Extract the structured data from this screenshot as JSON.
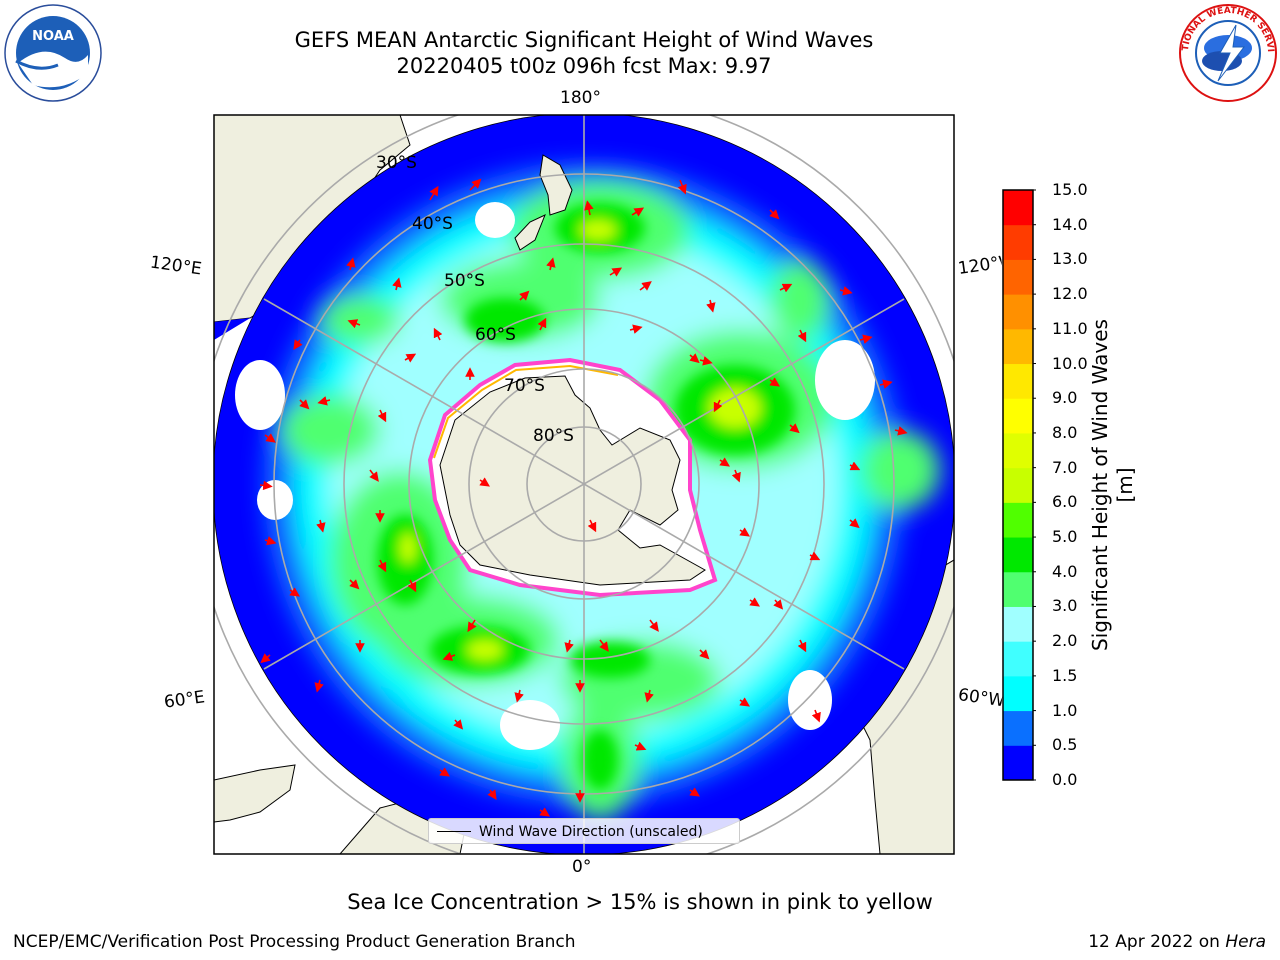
{
  "title": {
    "line1": "GEFS MEAN Antarctic Significant Height of Wind Waves",
    "line2": "20220405 t00z 096h fcst   Max: 9.97"
  },
  "logos": {
    "left": "NOAA",
    "right": "NATIONAL WEATHER SERVICE"
  },
  "map": {
    "projection": "south-polar-stereographic",
    "lon_labels": {
      "top": "180°",
      "left_upper": "120°E",
      "right_upper": "120°W",
      "left_lower": "60°E",
      "right_lower": "60°W",
      "bottom": "0°"
    },
    "lat_labels": [
      "30°S",
      "40°S",
      "50°S",
      "60°S",
      "70°S",
      "80°S"
    ],
    "legend": "Wind Wave Direction (unscaled)"
  },
  "colorbar": {
    "label": "Significant Height of Wind Waves [m]",
    "ticks": [
      "15.0",
      "14.0",
      "13.0",
      "12.0",
      "11.0",
      "10.0",
      "9.0",
      "8.0",
      "7.0",
      "6.0",
      "5.0",
      "4.0",
      "3.0",
      "2.0",
      "1.5",
      "1.0",
      "0.5",
      "0.0"
    ],
    "colors": [
      "#0000ff",
      "#0a70ff",
      "#00ffff",
      "#40ffff",
      "#a0ffff",
      "#50ff70",
      "#00e800",
      "#50ff00",
      "#c8ff00",
      "#e0ff00",
      "#ffff00",
      "#ffe800",
      "#ffb800",
      "#ff9000",
      "#ff6400",
      "#ff3c00",
      "#ff0000"
    ]
  },
  "footer": {
    "note": "Sea Ice Concentration > 15% is shown in pink to yellow",
    "left": "NCEP/EMC/Verification Post Processing Product Generation Branch",
    "right_date": "12 Apr 2022 on ",
    "right_host": "Hera"
  }
}
